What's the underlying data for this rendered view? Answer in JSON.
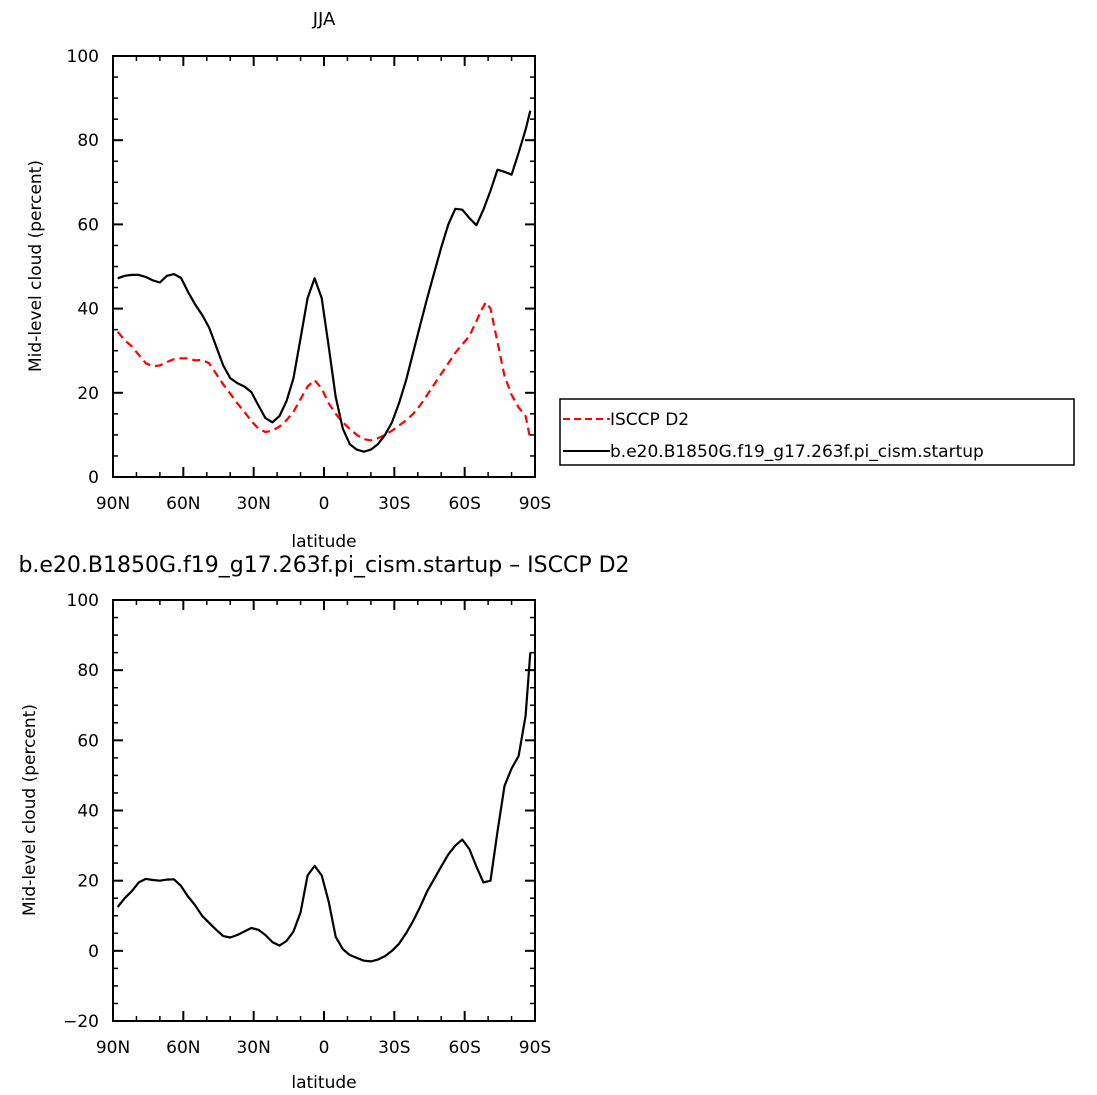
{
  "chart_data": [
    {
      "type": "line",
      "title": "JJA",
      "xlabel": "latitude",
      "ylabel": "Mid-level cloud (percent)",
      "xlim": [
        -90,
        90
      ],
      "ylim": [
        0,
        100
      ],
      "x_axis_note": "latitude from 90N (left) to 90S (right)",
      "xticks": [
        {
          "value": -90,
          "label": "90N"
        },
        {
          "value": -60,
          "label": "60N"
        },
        {
          "value": -30,
          "label": "30N"
        },
        {
          "value": 0,
          "label": "0"
        },
        {
          "value": 30,
          "label": "30S"
        },
        {
          "value": 60,
          "label": "60S"
        },
        {
          "value": 90,
          "label": "90S"
        }
      ],
      "yticks": [
        0,
        20,
        40,
        60,
        80,
        100
      ],
      "legend": {
        "placement": "right, outside plot"
      },
      "series": [
        {
          "name": "ISCCP D2",
          "color": "#ff0000",
          "dash": "dashed",
          "x": [
            -88,
            -85,
            -82,
            -79,
            -76,
            -73,
            -70,
            -67,
            -64,
            -61,
            -58,
            -55,
            -52,
            -49,
            -46,
            -43,
            -40,
            -37,
            -34,
            -31,
            -28,
            -25,
            -22,
            -19,
            -16,
            -13,
            -10,
            -7,
            -4,
            -1,
            2,
            5,
            8,
            11,
            14,
            17,
            20,
            23,
            26,
            29,
            32,
            35,
            38,
            41,
            44,
            47,
            50,
            53,
            56,
            59,
            62,
            65,
            67,
            69,
            71,
            74,
            77,
            80,
            83,
            86,
            88
          ],
          "y": [
            34.5,
            32.5,
            31,
            29,
            27,
            26.3,
            26.5,
            27.3,
            28,
            28.2,
            28.2,
            27.7,
            27.8,
            27,
            24.5,
            22,
            19.8,
            17.5,
            15.5,
            13.3,
            11.5,
            10.7,
            11,
            12,
            13.5,
            15.5,
            18.5,
            21.5,
            23,
            21,
            17.5,
            15,
            13,
            11.4,
            10,
            9,
            8.7,
            9.2,
            10,
            11,
            12.2,
            13.5,
            15,
            17,
            19.5,
            22,
            24.5,
            27,
            29.5,
            31.5,
            33.5,
            37,
            39.5,
            41.5,
            40,
            32,
            24,
            19.5,
            16.5,
            14.5,
            9
          ]
        },
        {
          "name": "b.e20.B1850G.f19_g17.263f.pi_cism.startup",
          "color": "#000000",
          "dash": "solid",
          "x": [
            -88,
            -85,
            -82,
            -79,
            -76,
            -73,
            -70,
            -67,
            -64,
            -61,
            -58,
            -55,
            -52,
            -49,
            -46,
            -43,
            -40,
            -37,
            -34,
            -31,
            -28,
            -25,
            -22,
            -19,
            -16,
            -13,
            -10,
            -7,
            -4,
            -1,
            2,
            5,
            8,
            11,
            14,
            17,
            20,
            23,
            26,
            29,
            32,
            35,
            38,
            41,
            44,
            47,
            50,
            53,
            56,
            59,
            62,
            65,
            68,
            71,
            74,
            77,
            80,
            83,
            86,
            88
          ],
          "y": [
            47.2,
            47.8,
            48,
            48,
            47.5,
            46.7,
            46.2,
            47.8,
            48.2,
            47.3,
            44,
            41,
            38.5,
            35.5,
            31,
            26.5,
            23.5,
            22.3,
            21.5,
            20.2,
            17,
            14,
            13,
            14.5,
            18,
            23.5,
            33,
            42.5,
            47.2,
            42.5,
            31,
            19,
            11.5,
            7.8,
            6.5,
            6,
            6.5,
            7.8,
            10,
            13,
            17.5,
            23,
            29.5,
            36,
            42.5,
            48.5,
            54.5,
            60,
            63.7,
            63.5,
            61.5,
            59.8,
            63.5,
            68,
            73,
            72.5,
            71.8,
            77,
            82.5,
            87
          ]
        }
      ]
    },
    {
      "type": "line",
      "title": "b.e20.B1850G.f19_g17.263f.pi_cism.startup – ISCCP D2",
      "xlabel": "latitude",
      "ylabel": "Mid-level cloud (percent)",
      "xlim": [
        -90,
        90
      ],
      "ylim": [
        -20,
        100
      ],
      "xticks": [
        {
          "value": -90,
          "label": "90N"
        },
        {
          "value": -60,
          "label": "60N"
        },
        {
          "value": -30,
          "label": "30N"
        },
        {
          "value": 0,
          "label": "0"
        },
        {
          "value": 30,
          "label": "30S"
        },
        {
          "value": 60,
          "label": "60S"
        },
        {
          "value": 90,
          "label": "90S"
        }
      ],
      "yticks": [
        -20,
        0,
        20,
        40,
        60,
        80,
        100
      ],
      "series": [
        {
          "color": "#000000",
          "dash": "solid",
          "x": [
            -88,
            -85,
            -82,
            -79,
            -76,
            -73,
            -70,
            -67,
            -64,
            -61,
            -58,
            -55,
            -52,
            -49,
            -46,
            -43,
            -40,
            -37,
            -34,
            -31,
            -28,
            -25,
            -22,
            -19,
            -16,
            -13,
            -10,
            -7,
            -4,
            -1,
            2,
            5,
            8,
            11,
            14,
            17,
            20,
            23,
            26,
            29,
            32,
            35,
            38,
            41,
            44,
            47,
            50,
            53,
            56,
            59,
            62,
            65,
            68,
            71,
            74,
            77,
            80,
            83,
            86,
            88
          ],
          "y": [
            12.5,
            15,
            17,
            19.5,
            20.5,
            20.2,
            20,
            20.3,
            20.4,
            18.5,
            15.5,
            13,
            10,
            8,
            6,
            4.2,
            3.8,
            4.5,
            5.5,
            6.5,
            6,
            4.5,
            2.5,
            1.5,
            2.8,
            5.5,
            11,
            21.5,
            24.2,
            21.5,
            14,
            4,
            0.5,
            -1.2,
            -2,
            -2.8,
            -3,
            -2.5,
            -1.5,
            0,
            2,
            5,
            8.5,
            12.5,
            17,
            20.5,
            24,
            27.5,
            30,
            31.7,
            29,
            24,
            19.5,
            20,
            34,
            47,
            52,
            55.5,
            67,
            85
          ]
        }
      ]
    }
  ]
}
